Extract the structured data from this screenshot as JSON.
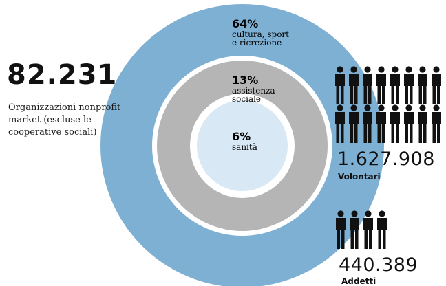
{
  "summary": {
    "organizations_count": "82.231",
    "organizations_label": "Organizzazioni nonprofit market (escluse le cooperative sociali)"
  },
  "volunteers": {
    "count": "1.627.908",
    "label": "Volontari",
    "icon": "person-icon",
    "icon_rows": 2,
    "icon_per_row": 8
  },
  "employees": {
    "count": "440.389",
    "label": "Addetti",
    "icon": "person-icon",
    "icon_rows": 1,
    "icon_per_row": 4
  },
  "chart_data": {
    "type": "pie",
    "style": "concentric-rings",
    "categories": [
      "cultura, sport e ricrezione",
      "assistenza sociale",
      "sanità"
    ],
    "values": [
      64,
      13,
      6
    ],
    "value_labels": [
      "64%",
      "13%",
      "6%"
    ],
    "label_lines": [
      [
        "cultura, sport",
        "e ricrezione"
      ],
      [
        "assistenza",
        "sociale"
      ],
      [
        "sanità"
      ]
    ],
    "colors": [
      "#7eb0d3",
      "#b5b5b5",
      "#d8e8f4"
    ],
    "gap_color": "#ffffff"
  }
}
